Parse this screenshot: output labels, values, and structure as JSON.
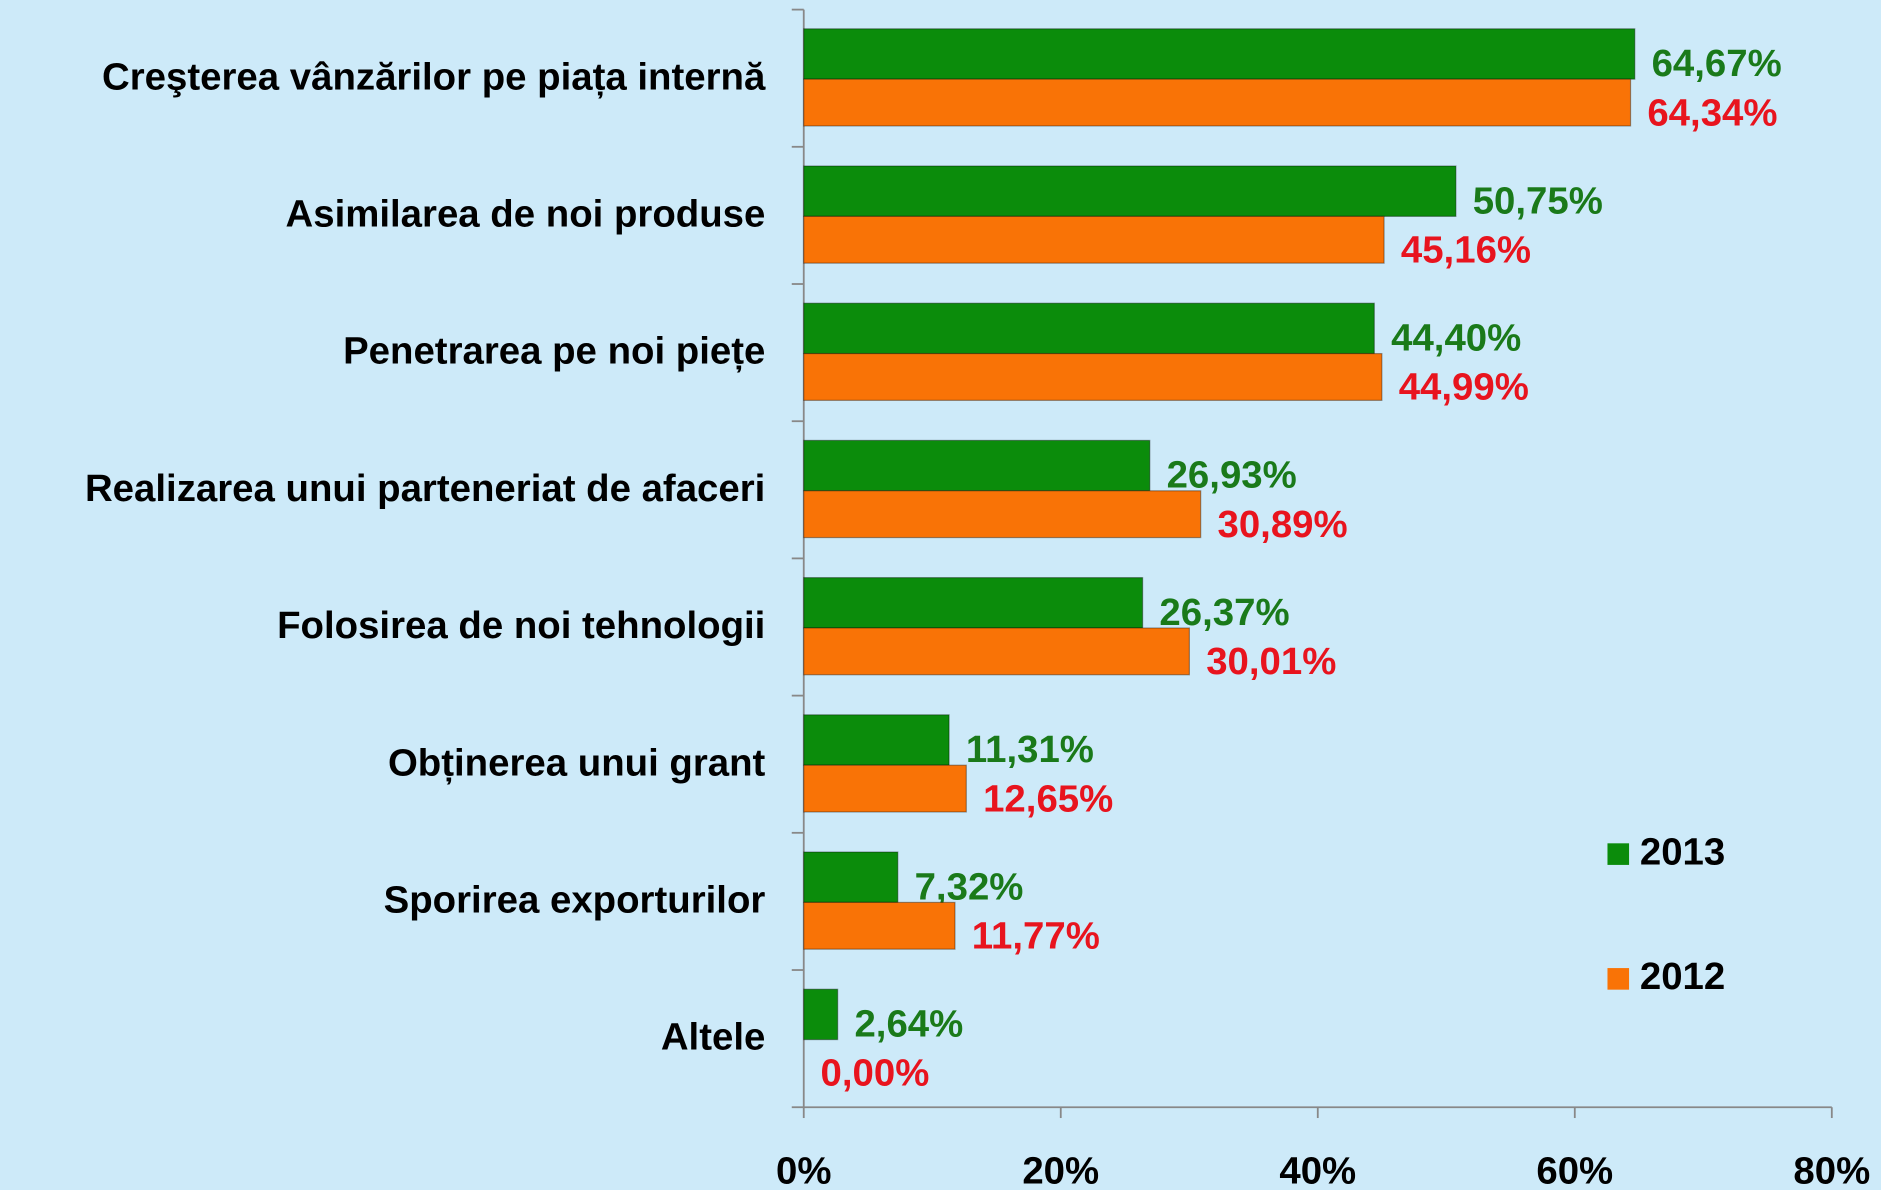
{
  "chart_data": {
    "type": "bar",
    "orientation": "horizontal",
    "categories": [
      "Creşterea vânzărilor pe piața internă",
      "Asimilarea de noi produse",
      "Penetrarea pe noi piețe",
      "Realizarea unui parteneriat de afaceri",
      "Folosirea de noi tehnologii",
      "Obținerea unui grant",
      "Sporirea exporturilor",
      "Altele"
    ],
    "series": [
      {
        "name": "2013",
        "color": "#0b8c0b",
        "label_color": "#1a7a1a",
        "values": [
          64.67,
          50.75,
          44.4,
          26.93,
          26.37,
          11.31,
          7.32,
          2.64
        ],
        "value_labels": [
          "64,67%",
          "50,75%",
          "44,40%",
          "26,93%",
          "26,37%",
          "11,31%",
          "7,32%",
          "2,64%"
        ]
      },
      {
        "name": "2012",
        "color": "#f97306",
        "label_color": "#e8141e",
        "values": [
          64.34,
          45.16,
          44.99,
          30.89,
          30.01,
          12.65,
          11.77,
          0.0
        ],
        "value_labels": [
          "64,34%",
          "45,16%",
          "44,99%",
          "30,89%",
          "30,01%",
          "12,65%",
          "11,77%",
          "0,00%"
        ]
      }
    ],
    "xlim": [
      0,
      80
    ],
    "xticks": [
      {
        "value": 0,
        "label": "0%"
      },
      {
        "value": 20,
        "label": "20%"
      },
      {
        "value": 40,
        "label": "40%"
      },
      {
        "value": 60,
        "label": "60%"
      },
      {
        "value": 80,
        "label": "80%"
      }
    ],
    "legend": "right"
  }
}
